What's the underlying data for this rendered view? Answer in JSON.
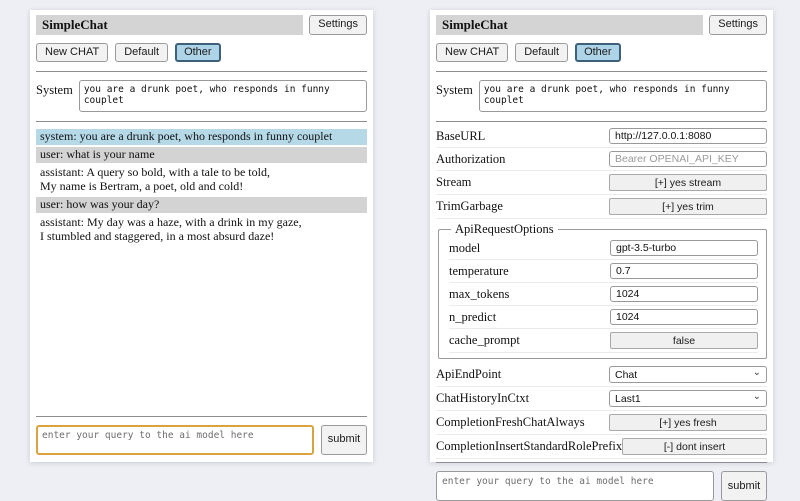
{
  "app": {
    "title": "SimpleChat",
    "settings_button": "Settings",
    "session_buttons": {
      "new_chat": "New CHAT",
      "default": "Default",
      "other": "Other"
    },
    "selected_session": "Other",
    "system": {
      "label": "System",
      "value": "you are a drunk poet, who responds in funny couplet"
    },
    "query": {
      "placeholder": "enter your query to the ai model here",
      "submit_label": "submit"
    }
  },
  "chat_panel": {
    "messages": [
      {
        "role": "system",
        "lines": [
          "system: you are a drunk poet, who responds in funny couplet"
        ]
      },
      {
        "role": "user",
        "lines": [
          "user: what is your name"
        ]
      },
      {
        "role": "assistant",
        "lines": [
          "assistant: A query so bold, with a tale to be told,",
          "My name is Bertram, a poet, old and cold!"
        ]
      },
      {
        "role": "user",
        "lines": [
          "user: how was your day?"
        ]
      },
      {
        "role": "assistant",
        "lines": [
          "assistant: My day was a haze, with a drink in my gaze,",
          "I stumbled and staggered, in a most absurd daze!"
        ]
      }
    ]
  },
  "settings_panel": {
    "rows_top": [
      {
        "label": "BaseURL",
        "type": "text",
        "value": "http://127.0.0.1:8080"
      },
      {
        "label": "Authorization",
        "type": "text",
        "value": "",
        "placeholder": "Bearer OPENAI_API_KEY"
      },
      {
        "label": "Stream",
        "type": "button",
        "value": "[+] yes stream"
      },
      {
        "label": "TrimGarbage",
        "type": "button",
        "value": "[+] yes trim"
      }
    ],
    "api_request_options": {
      "legend": "ApiRequestOptions",
      "rows": [
        {
          "label": "model",
          "type": "text",
          "value": "gpt-3.5-turbo"
        },
        {
          "label": "temperature",
          "type": "text",
          "value": "0.7"
        },
        {
          "label": "max_tokens",
          "type": "text",
          "value": "1024"
        },
        {
          "label": "n_predict",
          "type": "text",
          "value": "1024"
        },
        {
          "label": "cache_prompt",
          "type": "button",
          "value": "false"
        }
      ]
    },
    "rows_bottom": [
      {
        "label": "ApiEndPoint",
        "type": "select",
        "value": "Chat"
      },
      {
        "label": "ChatHistoryInCtxt",
        "type": "select",
        "value": "Last1"
      },
      {
        "label": "CompletionFreshChatAlways",
        "type": "button",
        "value": "[+] yes fresh"
      },
      {
        "label": "CompletionInsertStandardRolePrefix",
        "type": "button",
        "value": "[-] dont insert"
      }
    ]
  },
  "icons": {
    "select_chevron": "chevron-down-icon"
  },
  "colors": {
    "titlebar_bg": "#d4d4d4",
    "selected_session_bg": "#aed5e7",
    "system_msg_bg": "#b6d9e8",
    "user_msg_bg": "#d3d3d3",
    "focused_input_border": "#d9a43f"
  }
}
